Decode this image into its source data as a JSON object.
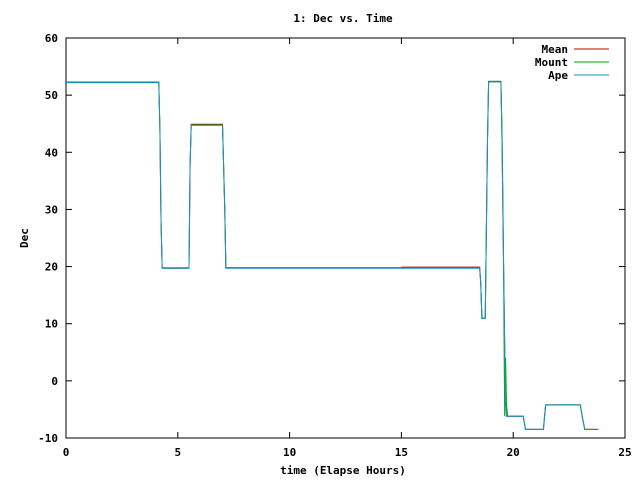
{
  "chart_data": {
    "type": "line",
    "title": "1: Dec vs. Time",
    "xlabel": "time (Elapse Hours)",
    "ylabel": "Dec",
    "xlim": [
      0,
      25
    ],
    "ylim": [
      -10,
      60
    ],
    "xticks": [
      0,
      5,
      10,
      15,
      20,
      25
    ],
    "yticks": [
      -10,
      0,
      10,
      20,
      30,
      40,
      50,
      60
    ],
    "grid": false,
    "legend_position": "top-right",
    "series": [
      {
        "name": "Mean",
        "color": "#cc0000",
        "points": [
          [
            0,
            52.3
          ],
          [
            4.15,
            52.3
          ],
          [
            4.2,
            44
          ],
          [
            4.25,
            28
          ],
          [
            4.3,
            19.8
          ],
          [
            4.35,
            19.7
          ],
          [
            5.5,
            19.7
          ],
          [
            5.55,
            38
          ],
          [
            5.6,
            44.9
          ],
          [
            7.0,
            44.9
          ],
          [
            7.1,
            30
          ],
          [
            7.15,
            19.8
          ],
          [
            15,
            19.8
          ],
          [
            15.01,
            19.9
          ],
          [
            18.5,
            19.9
          ],
          [
            18.55,
            17
          ],
          [
            18.6,
            11
          ],
          [
            18.75,
            11
          ],
          [
            18.85,
            42
          ],
          [
            18.9,
            52.4
          ],
          [
            19.45,
            52.4
          ],
          [
            19.5,
            42
          ],
          [
            19.55,
            26
          ],
          [
            19.6,
            12
          ],
          [
            19.65,
            -3
          ],
          [
            19.7,
            -6.2
          ],
          [
            20.45,
            -6.2
          ],
          [
            20.55,
            -8.5
          ],
          [
            21.35,
            -8.5
          ],
          [
            21.45,
            -4.2
          ],
          [
            23.0,
            -4.2
          ],
          [
            23.1,
            -6.5
          ],
          [
            23.2,
            -8.5
          ],
          [
            23.8,
            -8.5
          ]
        ]
      },
      {
        "name": "Mount",
        "color": "#00aa00",
        "points": [
          [
            0,
            52.3
          ],
          [
            4.15,
            52.3
          ],
          [
            4.2,
            44
          ],
          [
            4.25,
            28
          ],
          [
            4.3,
            19.8
          ],
          [
            5.5,
            19.8
          ],
          [
            5.55,
            38
          ],
          [
            5.6,
            44.8
          ],
          [
            7.0,
            44.8
          ],
          [
            7.1,
            30
          ],
          [
            7.15,
            19.8
          ],
          [
            18.5,
            19.8
          ],
          [
            18.55,
            17
          ],
          [
            18.6,
            11
          ],
          [
            18.75,
            11
          ],
          [
            18.85,
            42
          ],
          [
            18.9,
            52.4
          ],
          [
            19.45,
            52.4
          ],
          [
            19.5,
            44
          ],
          [
            19.52,
            38
          ],
          [
            19.55,
            28
          ],
          [
            19.58,
            14
          ],
          [
            19.6,
            2
          ],
          [
            19.62,
            -6.2
          ],
          [
            19.66,
            4
          ],
          [
            19.7,
            -4
          ],
          [
            19.75,
            -6.2
          ],
          [
            20.45,
            -6.2
          ],
          [
            20.55,
            -8.5
          ],
          [
            21.35,
            -8.5
          ],
          [
            21.45,
            -4.2
          ],
          [
            23.0,
            -4.2
          ],
          [
            23.1,
            -6.5
          ],
          [
            23.2,
            -8.5
          ],
          [
            23.8,
            -8.5
          ]
        ]
      },
      {
        "name": "Ape",
        "color": "#1a8fd0",
        "points": [
          [
            0,
            52.2
          ],
          [
            4.15,
            52.2
          ],
          [
            4.2,
            44
          ],
          [
            4.25,
            28
          ],
          [
            4.3,
            19.7
          ],
          [
            5.5,
            19.7
          ],
          [
            5.55,
            38
          ],
          [
            5.6,
            44.7
          ],
          [
            7.0,
            44.7
          ],
          [
            7.1,
            30
          ],
          [
            7.15,
            19.7
          ],
          [
            18.5,
            19.7
          ],
          [
            18.55,
            17
          ],
          [
            18.6,
            10.9
          ],
          [
            18.75,
            10.9
          ],
          [
            18.85,
            42
          ],
          [
            18.9,
            52.3
          ],
          [
            19.45,
            52.3
          ],
          [
            19.5,
            42
          ],
          [
            19.55,
            26
          ],
          [
            19.6,
            12
          ],
          [
            19.65,
            -3
          ],
          [
            19.7,
            -6.2
          ],
          [
            20.45,
            -6.2
          ],
          [
            20.55,
            -8.5
          ],
          [
            21.35,
            -8.5
          ],
          [
            21.45,
            -4.2
          ],
          [
            23.0,
            -4.2
          ],
          [
            23.1,
            -6.5
          ],
          [
            23.2,
            -8.5
          ],
          [
            23.8,
            -8.5
          ]
        ]
      }
    ]
  }
}
